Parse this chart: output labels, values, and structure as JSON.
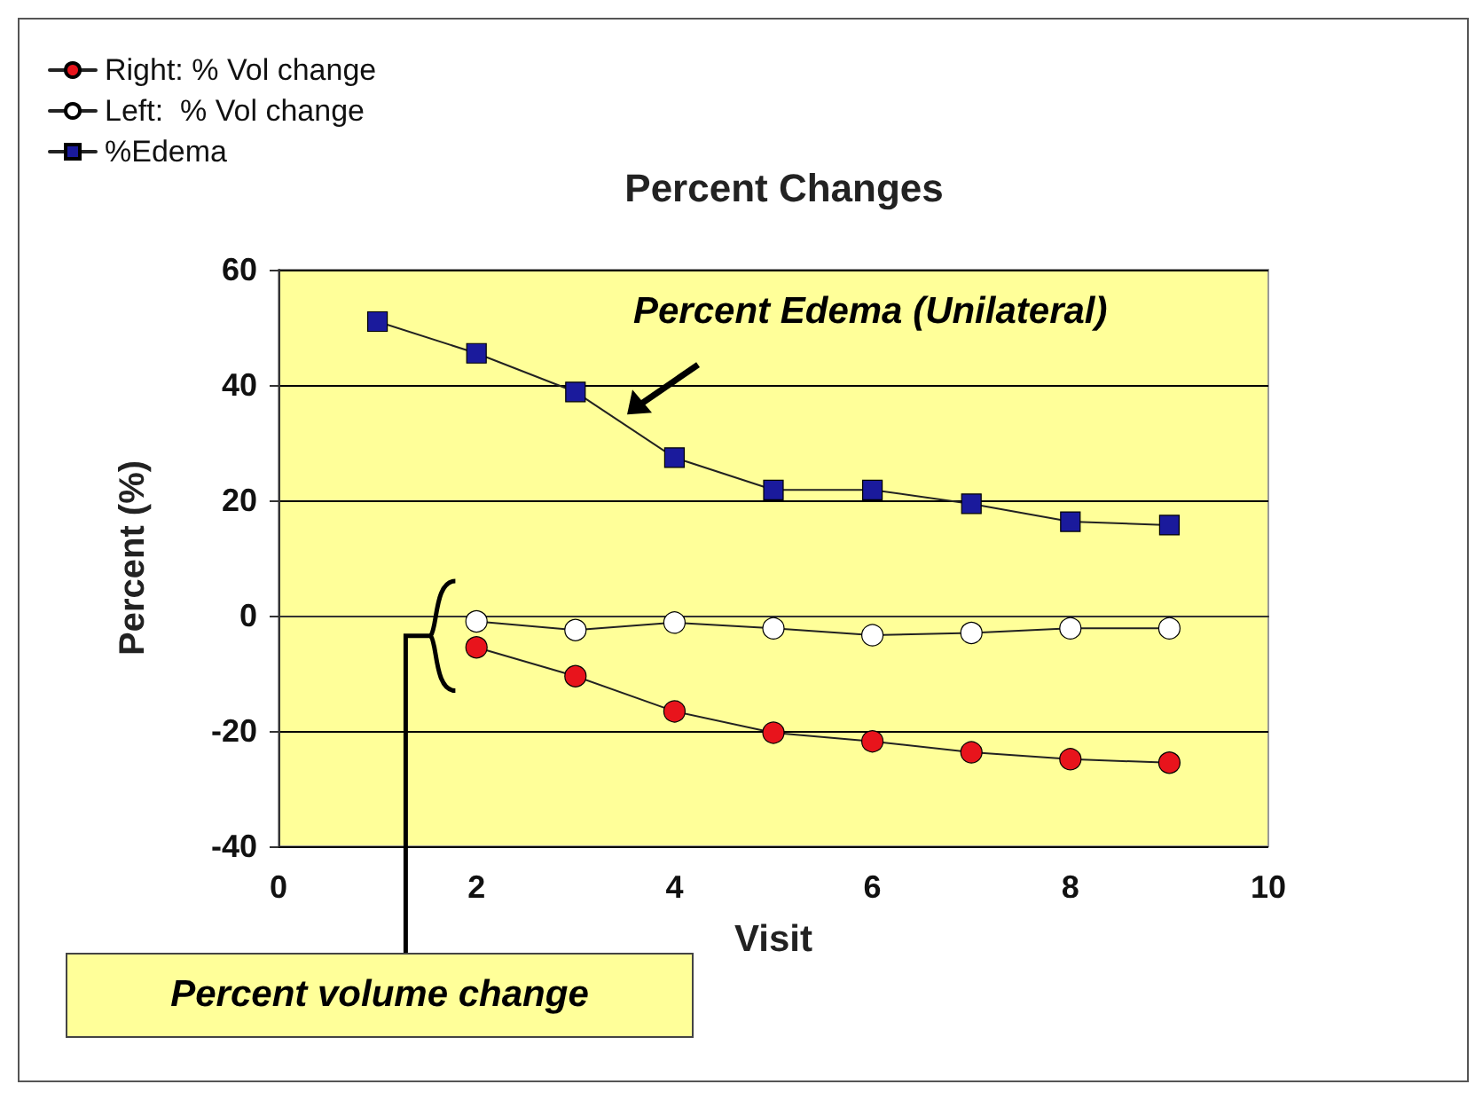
{
  "chart_data": {
    "type": "line",
    "title": "Percent Changes",
    "xlabel": "Visit",
    "ylabel": "Percent (%)",
    "annotations": [
      "Percent Edema (Unilateral)",
      "Percent volume change"
    ],
    "series": [
      {
        "name": "Right: % Vol change",
        "color": "#e8141c",
        "marker": "circle",
        "x": [
          2,
          3,
          4,
          5,
          6,
          7,
          8,
          9
        ],
        "values": [
          -5.5,
          -10.5,
          -16.6,
          -20.3,
          -21.8,
          -23.7,
          -24.9,
          -25.5
        ]
      },
      {
        "name": "Left:  % Vol change",
        "color": "#ffffff",
        "marker": "circle",
        "x": [
          2,
          3,
          4,
          5,
          6,
          7,
          8,
          9
        ],
        "values": [
          -1,
          -2.5,
          -1.2,
          -2.2,
          -3.4,
          -3,
          -2.2,
          -2.2
        ]
      },
      {
        "name": "%Edema",
        "color": "#1a1a9c",
        "marker": "square",
        "x": [
          1,
          2,
          3,
          4,
          5,
          6,
          7,
          8,
          9
        ],
        "values": [
          51,
          45.5,
          38.8,
          27.4,
          21.8,
          21.8,
          19.4,
          16.3,
          15.7
        ]
      }
    ],
    "xlim": [
      0,
      10
    ],
    "xticks": [
      0,
      2,
      4,
      6,
      8,
      10
    ],
    "ylim": [
      -40,
      60
    ],
    "yticks": [
      -40,
      -20,
      0,
      20,
      40,
      60
    ],
    "grid": "y",
    "legend": "top left",
    "line_style": "solid"
  }
}
